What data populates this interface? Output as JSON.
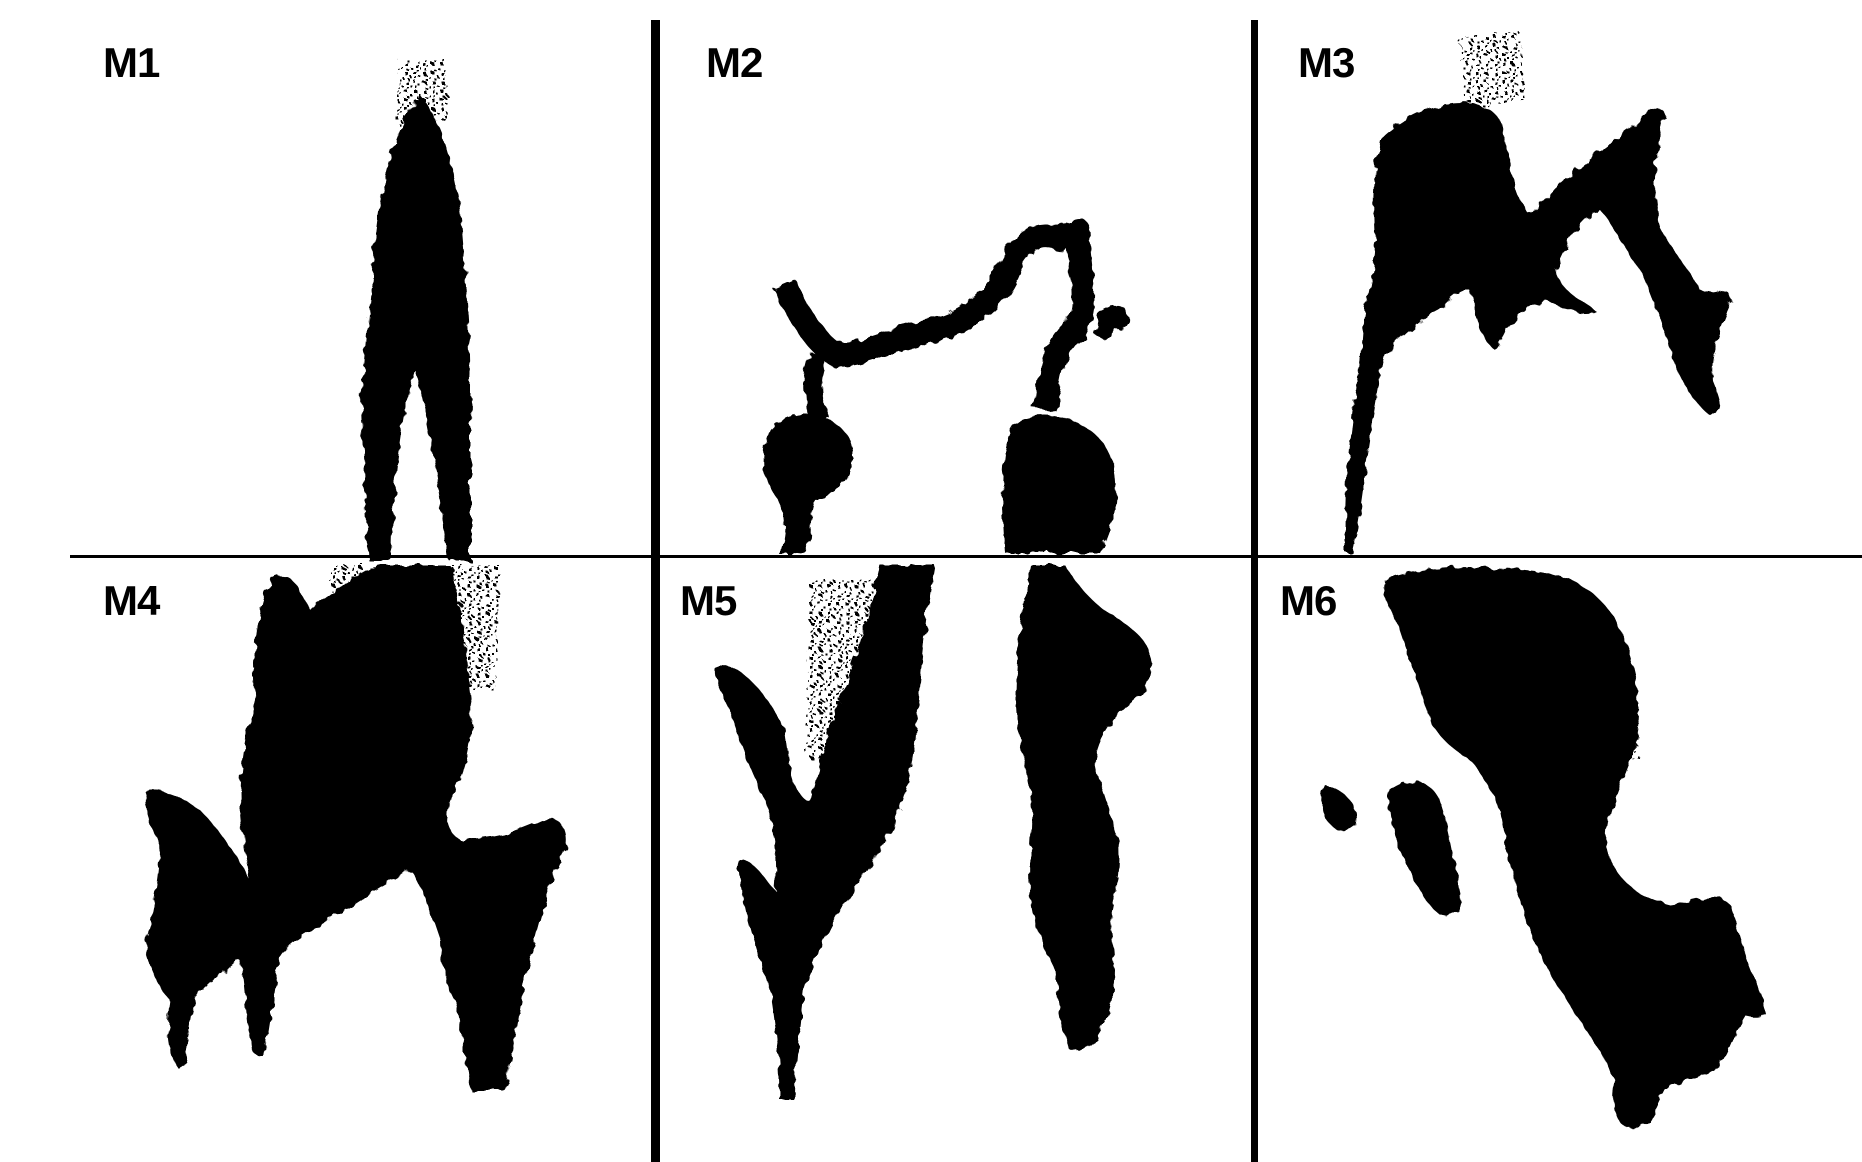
{
  "figure": {
    "background": "#ffffff",
    "ink_color": "#000000",
    "panels": [
      {
        "label": "M1"
      },
      {
        "label": "M2"
      },
      {
        "label": "M3"
      },
      {
        "label": "M4"
      },
      {
        "label": "M5"
      },
      {
        "label": "M6"
      }
    ]
  }
}
